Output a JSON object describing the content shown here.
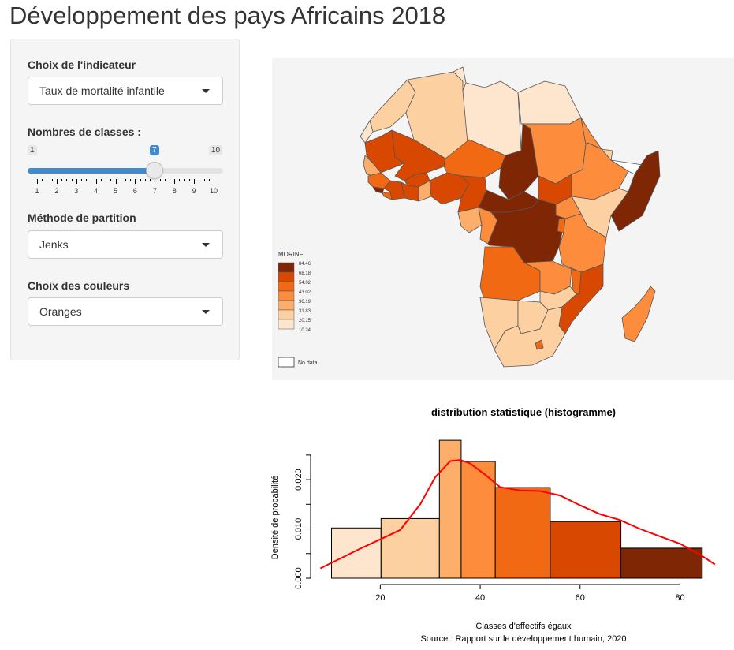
{
  "app": {
    "title": "Développement des pays Africains 2018"
  },
  "sidebar": {
    "indicator": {
      "label": "Choix de l'indicateur",
      "value": "Taux de mortalité infantile"
    },
    "classes": {
      "label": "Nombres de classes :",
      "min": "1",
      "max": "10",
      "value": "7",
      "ticks": [
        "1",
        "2",
        "3",
        "4",
        "5",
        "6",
        "7",
        "8",
        "9",
        "10"
      ]
    },
    "method": {
      "label": "Méthode de partition",
      "value": "Jenks"
    },
    "colors": {
      "label": "Choix des couleurs",
      "value": "Oranges"
    }
  },
  "map": {
    "legend_title": "MORINF",
    "legend_breaks": [
      "84.46",
      "68.18",
      "54.02",
      "43.02",
      "36.19",
      "31.83",
      "20.15",
      "10.24"
    ],
    "legend_nodata": "No data",
    "palette": [
      "#7f2704",
      "#d94801",
      "#f16913",
      "#fd8d3c",
      "#fdae6b",
      "#fdd0a2",
      "#fee6ce"
    ]
  },
  "chart_data": {
    "type": "bar",
    "title": "distribution statistique (histogramme)",
    "xlabel": "Classes d'effectifs égaux",
    "ylabel": "Densité de probabilité",
    "caption": "Source : Rapport sur le développement humain, 2020",
    "xlim": [
      10,
      85
    ],
    "ylim": [
      0,
      0.025
    ],
    "xticks": [
      "20",
      "40",
      "60",
      "80"
    ],
    "yticks": [
      "0.000",
      "0.010",
      "0.020"
    ],
    "bins": [
      {
        "from": 10.24,
        "to": 20.15,
        "density": 0.0102,
        "color": "#fee6ce"
      },
      {
        "from": 20.15,
        "to": 31.83,
        "density": 0.0121,
        "color": "#fdd0a2"
      },
      {
        "from": 31.83,
        "to": 36.19,
        "density": 0.028,
        "color": "#fdae6b"
      },
      {
        "from": 36.19,
        "to": 43.02,
        "density": 0.0237,
        "color": "#fd8d3c"
      },
      {
        "from": 43.02,
        "to": 54.02,
        "density": 0.0184,
        "color": "#f16913"
      },
      {
        "from": 54.02,
        "to": 68.18,
        "density": 0.0115,
        "color": "#d94801"
      },
      {
        "from": 68.18,
        "to": 84.46,
        "density": 0.0061,
        "color": "#7f2704"
      }
    ],
    "density_curve": {
      "x": [
        8,
        12,
        16,
        20,
        24,
        28,
        31,
        34,
        36,
        38,
        41,
        44,
        48,
        52,
        56,
        60,
        64,
        68,
        72,
        76,
        80,
        84,
        87
      ],
      "y": [
        0.002,
        0.004,
        0.006,
        0.0079,
        0.0098,
        0.015,
        0.0205,
        0.0238,
        0.024,
        0.0233,
        0.021,
        0.0185,
        0.0178,
        0.0177,
        0.0168,
        0.0148,
        0.013,
        0.0118,
        0.01,
        0.0085,
        0.007,
        0.0048,
        0.0028
      ]
    },
    "curve_color": "#ff0000"
  }
}
